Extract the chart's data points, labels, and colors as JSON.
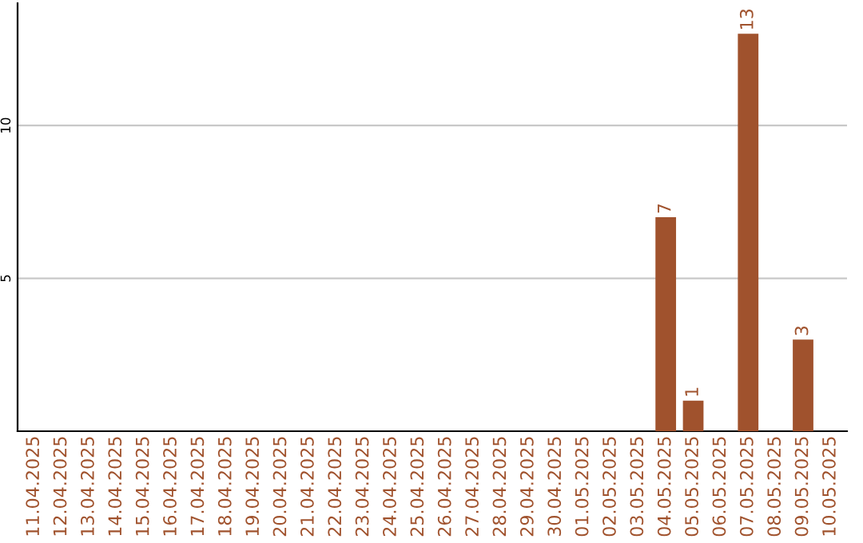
{
  "chart_data": {
    "type": "bar",
    "categories": [
      "11.04.2025",
      "12.04.2025",
      "13.04.2025",
      "14.04.2025",
      "15.04.2025",
      "16.04.2025",
      "17.04.2025",
      "18.04.2025",
      "19.04.2025",
      "20.04.2025",
      "21.04.2025",
      "22.04.2025",
      "23.04.2025",
      "24.04.2025",
      "25.04.2025",
      "26.04.2025",
      "27.04.2025",
      "28.04.2025",
      "29.04.2025",
      "30.04.2025",
      "01.05.2025",
      "02.05.2025",
      "03.05.2025",
      "04.05.2025",
      "05.05.2025",
      "06.05.2025",
      "07.05.2025",
      "08.05.2025",
      "09.05.2025",
      "10.05.2025"
    ],
    "values": [
      0,
      0,
      0,
      0,
      0,
      0,
      0,
      0,
      0,
      0,
      0,
      0,
      0,
      0,
      0,
      0,
      0,
      0,
      0,
      0,
      0,
      0,
      0,
      7,
      1,
      0,
      13,
      0,
      3,
      0
    ],
    "value_labels": [
      null,
      null,
      null,
      null,
      null,
      null,
      null,
      null,
      null,
      null,
      null,
      null,
      null,
      null,
      null,
      null,
      null,
      null,
      null,
      null,
      null,
      null,
      null,
      "7",
      "1",
      null,
      "13",
      null,
      "3",
      null
    ],
    "color": "#a0522d",
    "ylim": [
      0,
      14
    ],
    "yticks": [
      5,
      10
    ],
    "grid": "y",
    "legend": false
  }
}
